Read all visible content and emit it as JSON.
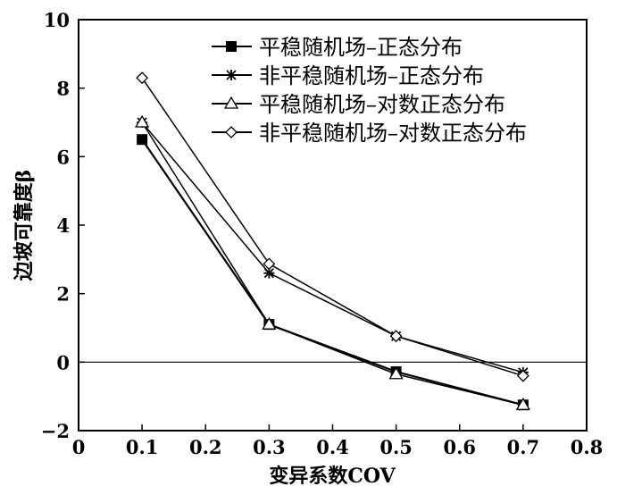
{
  "chart_data": {
    "type": "line",
    "title": "",
    "xlabel": "变异系数COV",
    "ylabel": "边坡可靠度β",
    "xlim": [
      0,
      0.8
    ],
    "ylim": [
      -2,
      10
    ],
    "xticks": [
      "0",
      "0.1",
      "0.2",
      "0.3",
      "0.4",
      "0.5",
      "0.6",
      "0.7",
      "0.8"
    ],
    "yticks": [
      "−2",
      "0",
      "2",
      "4",
      "6",
      "8",
      "10"
    ],
    "xtick_values": [
      0,
      0.1,
      0.2,
      0.3,
      0.4,
      0.5,
      0.6,
      0.7,
      0.8
    ],
    "ytick_values": [
      -2,
      0,
      2,
      4,
      6,
      8,
      10
    ],
    "reference_line_y": 0,
    "legend_position": "top-right",
    "x": [
      0.1,
      0.3,
      0.5,
      0.7
    ],
    "series": [
      {
        "name": "平稳随机场–正态分布",
        "marker": "filled-square",
        "values": [
          6.5,
          1.1,
          -0.28,
          -1.25
        ]
      },
      {
        "name": "非平稳随机场–正态分布",
        "marker": "asterisk",
        "values": [
          7.0,
          2.6,
          0.76,
          -0.3
        ]
      },
      {
        "name": "平稳随机场–对数正态分布",
        "marker": "open-triangle",
        "values": [
          7.0,
          1.1,
          -0.35,
          -1.25
        ]
      },
      {
        "name": "非平稳随机场–对数正态分布",
        "marker": "open-diamond",
        "values": [
          8.3,
          2.87,
          0.76,
          -0.4
        ]
      }
    ]
  }
}
